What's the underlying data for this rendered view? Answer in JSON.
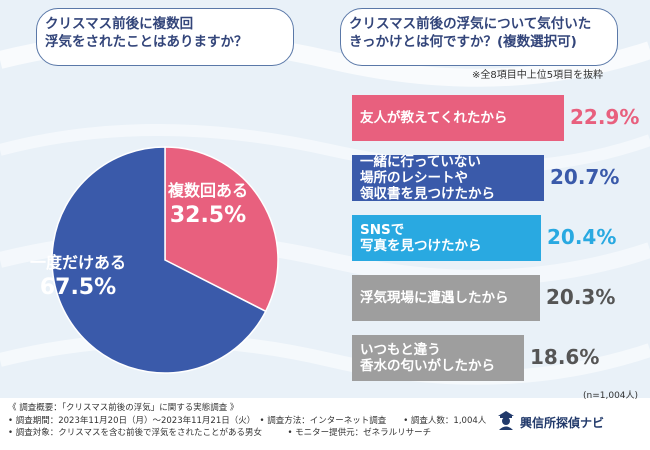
{
  "questions": {
    "left": [
      "クリスマス前後に複数回",
      "浮気をされたことはありますか？"
    ],
    "right": [
      "クリスマス前後の浮気について気付いた",
      "きっかけとは何ですか？(複数選択可)"
    ],
    "right_note": "※全8項目中上位5項目を抜粋",
    "sample_note": "(n=1,004人)"
  },
  "chart_data": [
    {
      "type": "pie",
      "categories": [
        "複数回ある",
        "一度だけある"
      ],
      "values": [
        32.5,
        67.5
      ],
      "labels": [
        "32.5%",
        "67.5%"
      ],
      "colors": [
        "#e8607e",
        "#3a5aaa"
      ]
    },
    {
      "type": "bar",
      "categories": [
        "友人が教えてくれたから",
        "一緒に行っていない\n場所のレシートや\n領収書を見つけたから",
        "SNSで\n写真を見つけたから",
        "浮気現場に遭遇したから",
        "いつもと違う\n香水の匂いがしたから"
      ],
      "values": [
        22.9,
        20.7,
        20.4,
        20.3,
        18.6
      ],
      "colors": [
        "#e8607e",
        "#3a5aaa",
        "#29a9e1",
        "#9e9e9e",
        "#9e9e9e"
      ],
      "pct_colors": [
        "#e8607e",
        "#3a5aaa",
        "#29a9e1",
        "#555555",
        "#555555"
      ],
      "xlim": [
        0,
        22.9
      ]
    }
  ],
  "footer": {
    "lines": [
      "《 調査概要：「クリスマス前後の浮気」に関する実態調査 》",
      "• 調査期間：2023年11月20日（月）〜2023年11月21日（火）　• 調査方法：インターネット調査　　• 調査人数：1,004人",
      "• 調査対象：クリスマスを含む前後で浮気をされたことがある男女　　　• モニター提供元：ゼネラルリサーチ"
    ],
    "brand": "興信所探偵ナビ"
  },
  "icons": [
    "detective-icon"
  ]
}
